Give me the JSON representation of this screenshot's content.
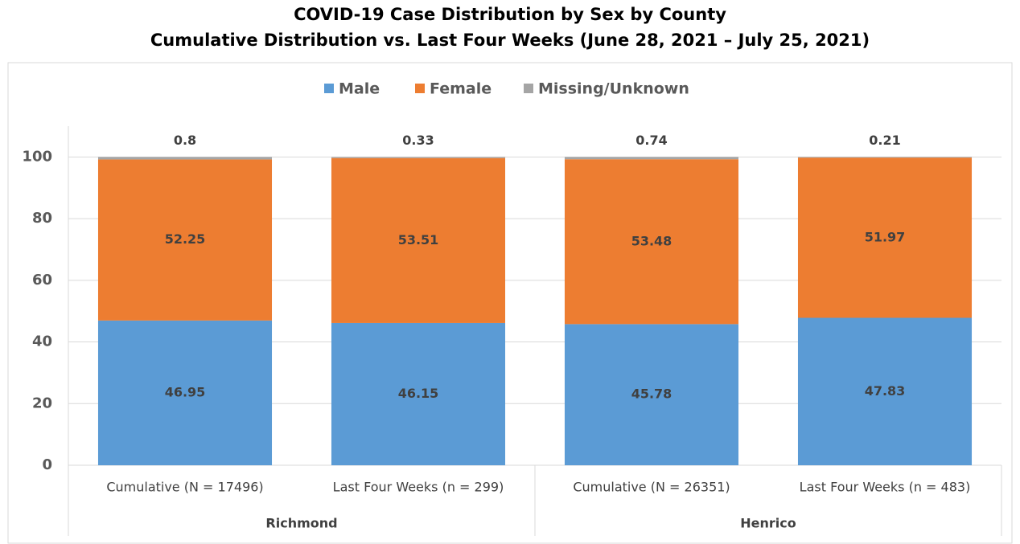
{
  "chart_data": {
    "type": "stacked_bar",
    "title": [
      "COVID-19 Case Distribution by Sex by County",
      "Cumulative Distribution vs. Last Four Weeks (June 28, 2021 – July 25, 2021)"
    ],
    "categories": [
      "Cumulative (N = 17496)",
      "Last Four Weeks (n = 299)",
      "Cumulative (N = 26351)",
      "Last Four Weeks (n = 483)"
    ],
    "groups": [
      "Richmond",
      "Henrico"
    ],
    "series": [
      {
        "name": "Male",
        "color": "#5b9bd5",
        "values": [
          46.95,
          46.15,
          45.78,
          47.83
        ]
      },
      {
        "name": "Female",
        "color": "#ed7d31",
        "values": [
          52.25,
          53.51,
          53.48,
          51.97
        ]
      },
      {
        "name": "Missing/Unknown",
        "color": "#a5a5a5",
        "values": [
          0.8,
          0.33,
          0.74,
          0.21
        ]
      }
    ],
    "ylim": [
      0,
      110
    ],
    "yticks": [
      0,
      20,
      40,
      60,
      80,
      100
    ],
    "grid": true,
    "legend": "top"
  }
}
